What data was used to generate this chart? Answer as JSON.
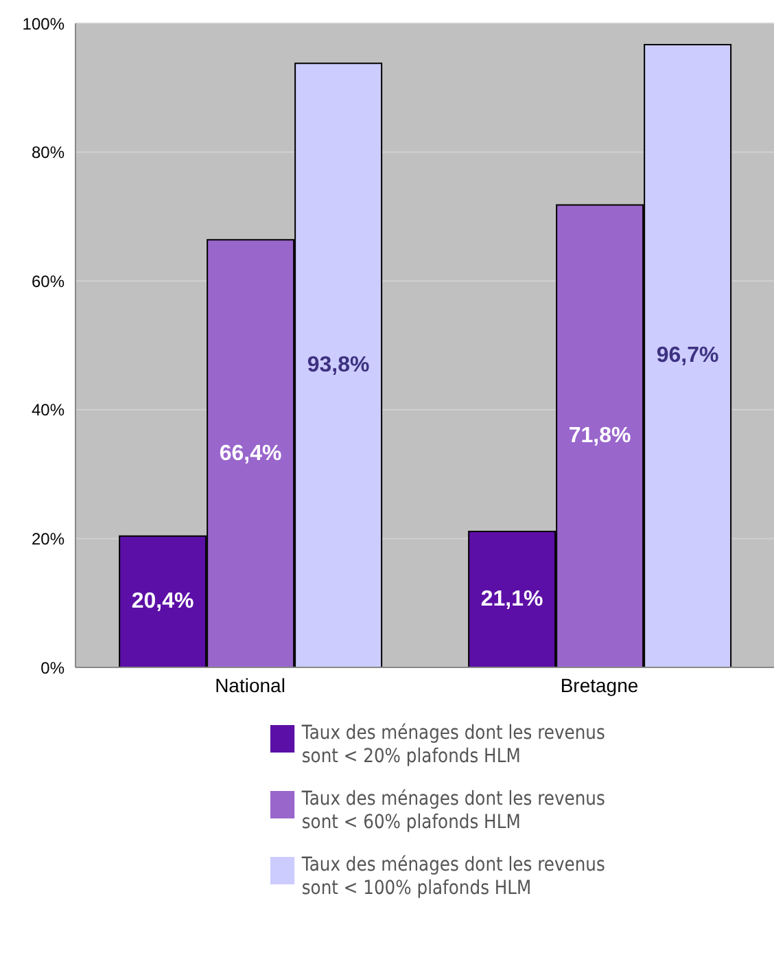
{
  "chart_data": {
    "type": "bar",
    "categories": [
      "National",
      "Bretagne"
    ],
    "series": [
      {
        "name": "Taux des ménages dont les revenus sont < 20% plafonds HLM",
        "color": "#5c0fa6",
        "values": [
          20.4,
          21.1
        ],
        "value_labels": [
          "20,4%",
          "21,1%"
        ]
      },
      {
        "name": "Taux des ménages dont les revenus sont < 60% plafonds HLM",
        "color": "#9966cc",
        "values": [
          66.4,
          71.8
        ],
        "value_labels": [
          "66,4%",
          "71,8%"
        ]
      },
      {
        "name": "Taux des ménages dont les revenus sont < 100% plafonds HLM",
        "color": "#ccccff",
        "values": [
          93.8,
          96.7
        ],
        "value_labels": [
          "93,8%",
          "96,7%"
        ]
      }
    ],
    "ylim": [
      0,
      100
    ],
    "yticks": [
      {
        "value": 0,
        "label": "0%"
      },
      {
        "value": 20,
        "label": "20%"
      },
      {
        "value": 40,
        "label": "40%"
      },
      {
        "value": 60,
        "label": "60%"
      },
      {
        "value": 80,
        "label": "80%"
      },
      {
        "value": 100,
        "label": "100%"
      }
    ],
    "grid": "y",
    "legend": "bottom"
  }
}
